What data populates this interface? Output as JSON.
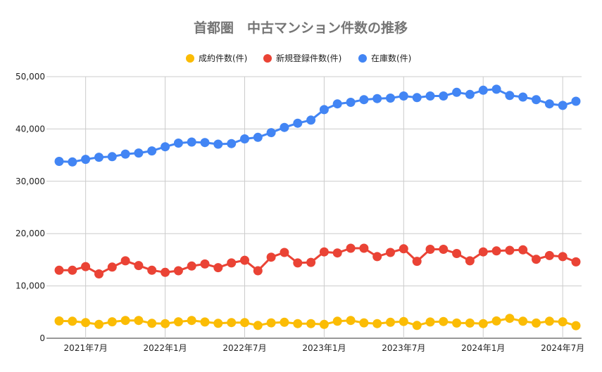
{
  "chart_data": {
    "type": "line",
    "title": "首都圏　中古マンション件数の推移",
    "xlabel": "",
    "ylabel": "",
    "ylim": [
      0,
      50000
    ],
    "y_ticks": [
      "0",
      "10,000",
      "20,000",
      "30,000",
      "40,000",
      "50,000"
    ],
    "y_tick_values": [
      0,
      10000,
      20000,
      30000,
      40000,
      50000
    ],
    "x_ticks": [
      "2021年7月",
      "2022年1月",
      "2022年7月",
      "2023年1月",
      "2023年7月",
      "2024年1月",
      "2024年7月"
    ],
    "x_tick_indices": [
      2,
      8,
      14,
      20,
      26,
      32,
      38
    ],
    "grid": true,
    "legend_position": "top",
    "x": [
      "2021-05",
      "2021-06",
      "2021-07",
      "2021-08",
      "2021-09",
      "2021-10",
      "2021-11",
      "2021-12",
      "2022-01",
      "2022-02",
      "2022-03",
      "2022-04",
      "2022-05",
      "2022-06",
      "2022-07",
      "2022-08",
      "2022-09",
      "2022-10",
      "2022-11",
      "2022-12",
      "2023-01",
      "2023-02",
      "2023-03",
      "2023-04",
      "2023-05",
      "2023-06",
      "2023-07",
      "2023-08",
      "2023-09",
      "2023-10",
      "2023-11",
      "2023-12",
      "2024-01",
      "2024-02",
      "2024-03",
      "2024-04",
      "2024-05",
      "2024-06",
      "2024-07",
      "2024-08"
    ],
    "series": [
      {
        "name": "成約件数(件)",
        "color": "#fbbc04",
        "values": [
          3300,
          3250,
          3000,
          2650,
          3150,
          3400,
          3400,
          2850,
          2800,
          3150,
          3400,
          3100,
          2850,
          3000,
          3000,
          2450,
          2950,
          3050,
          2800,
          2800,
          2650,
          3250,
          3400,
          2950,
          2800,
          3050,
          3200,
          2450,
          3100,
          3200,
          2900,
          2900,
          2800,
          3300,
          3800,
          3250,
          2900,
          3250,
          3150,
          2400
        ]
      },
      {
        "name": "新規登録件数(件)",
        "color": "#ea4335",
        "values": [
          13000,
          13000,
          13700,
          12300,
          13600,
          14800,
          13900,
          13000,
          12600,
          12900,
          13800,
          14200,
          13500,
          14400,
          14900,
          12900,
          15500,
          16400,
          14400,
          14500,
          16500,
          16300,
          17200,
          17200,
          15600,
          16400,
          17100,
          14700,
          17000,
          17000,
          16200,
          14800,
          16500,
          16700,
          16800,
          16900,
          15100,
          15800,
          15600,
          14600
        ]
      },
      {
        "name": "在庫数(件)",
        "color": "#4285f4",
        "values": [
          33800,
          33700,
          34200,
          34600,
          34700,
          35200,
          35400,
          35800,
          36600,
          37300,
          37500,
          37400,
          37100,
          37200,
          38100,
          38400,
          39300,
          40300,
          41100,
          41700,
          43700,
          44800,
          45100,
          45600,
          45800,
          45900,
          46300,
          46000,
          46300,
          46300,
          47000,
          46600,
          47400,
          47600,
          46400,
          46100,
          45600,
          44800,
          44500,
          45300
        ]
      }
    ]
  }
}
